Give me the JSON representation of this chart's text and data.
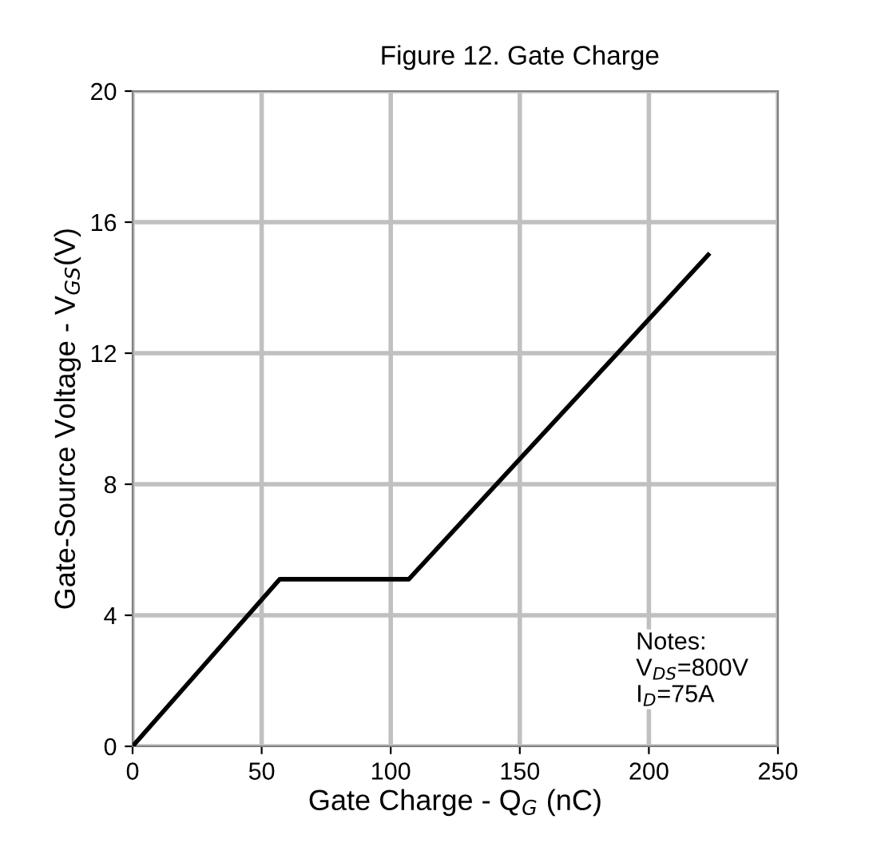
{
  "chart_data": {
    "type": "line",
    "title": "Figure 12. Gate Charge",
    "xlabel": "Gate Charge - Q$_{G}$ (nC)",
    "ylabel": "Gate-Source Voltage - V$_{GS}$(V)",
    "series": [
      {
        "color": "#000000",
        "x": [
          0,
          57,
          107,
          223
        ],
        "values": [
          0,
          5.1,
          5.1,
          15
        ]
      }
    ],
    "xlim": [
      0,
      250
    ],
    "xticks": [
      0,
      50,
      100,
      150,
      200,
      250
    ],
    "ylim": [
      0,
      20
    ],
    "yticks": [
      0,
      4,
      8,
      12,
      16,
      20
    ],
    "grid": true,
    "line_style": "solid",
    "marker": "none",
    "annotations": [
      "Notes:\nV$_{DS}$=800V\nI$_{D}$=75A"
    ]
  }
}
